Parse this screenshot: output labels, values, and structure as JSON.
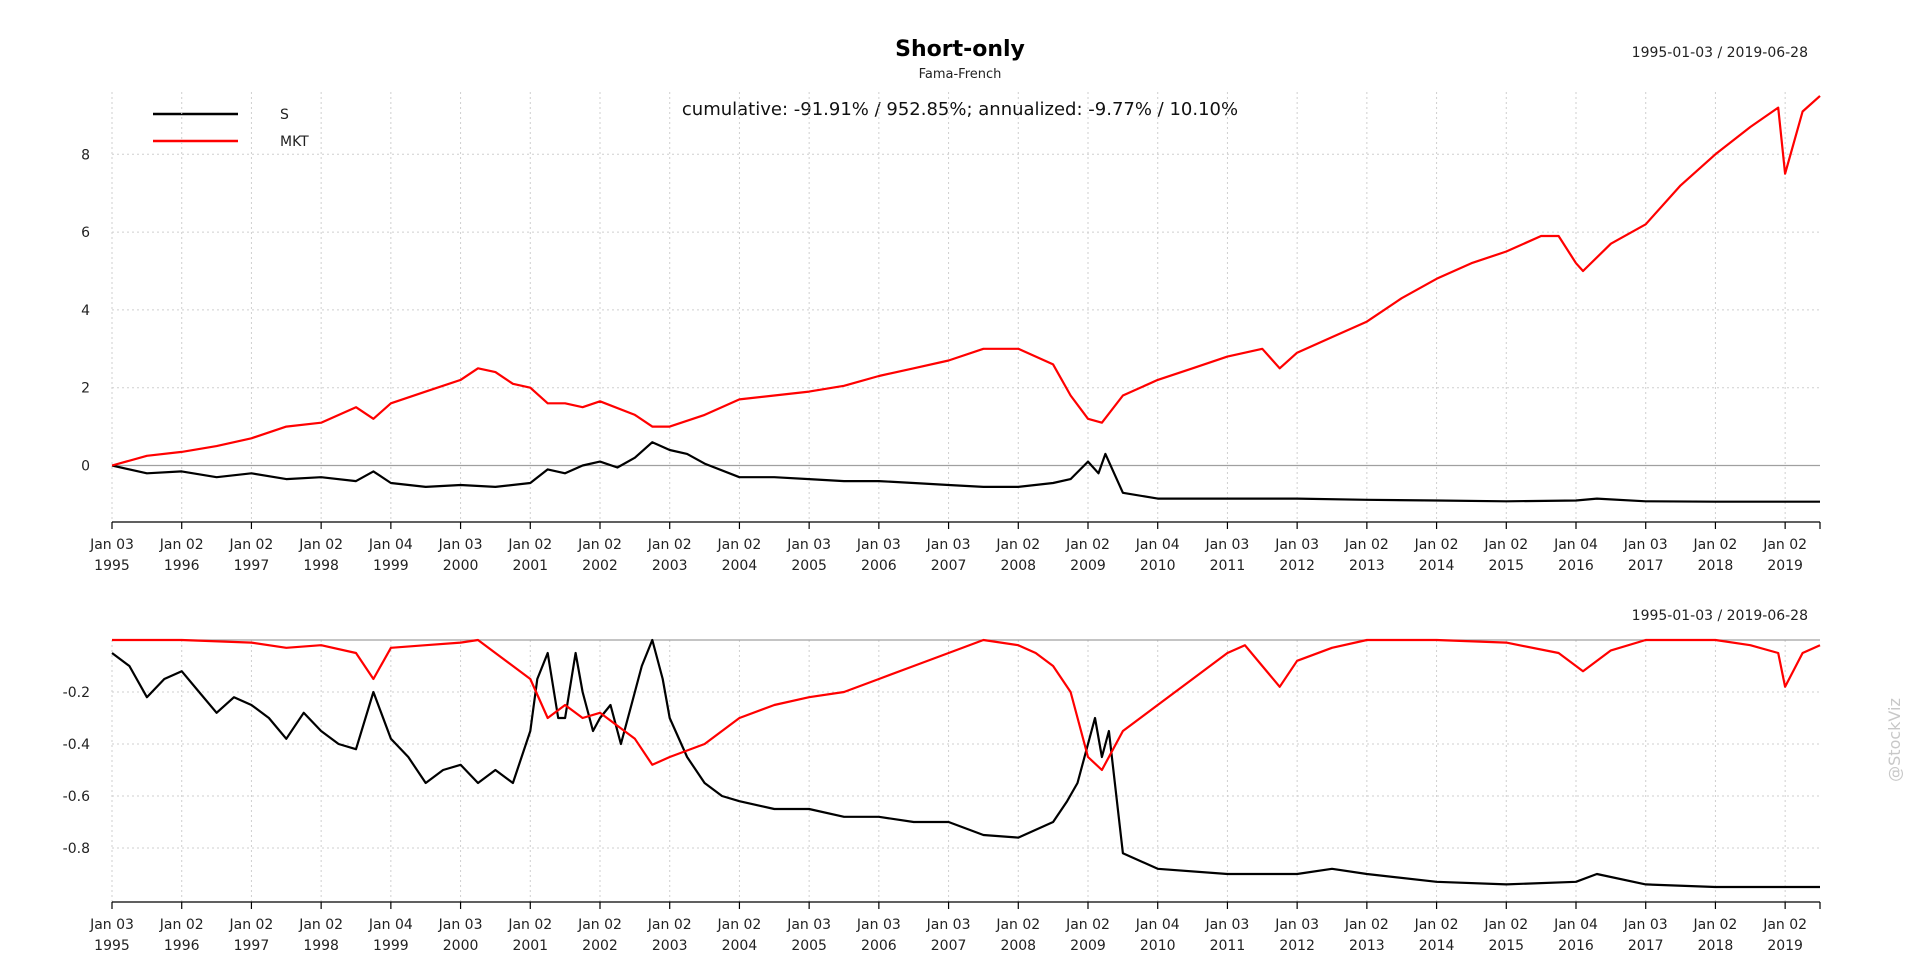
{
  "chart_data": [
    {
      "type": "line",
      "title": "Short-only",
      "subtitle": "Fama-French",
      "date_range": "1995-01-03 / 2019-06-28",
      "annotation": "cumulative: -91.91% / 952.85%; annualized: -9.77% / 10.10%",
      "legend_position": "top-left",
      "grid": true,
      "xlim": [
        1995.0,
        2019.5
      ],
      "ylim": [
        -1.4,
        9.6
      ],
      "yticks": [
        0,
        2,
        4,
        6,
        8
      ],
      "ytick_labels": [
        "0",
        "2",
        "4",
        "6",
        "8"
      ],
      "series": [
        {
          "name": "S",
          "color": "#000000",
          "x": [
            1995.0,
            1995.5,
            1996.0,
            1996.5,
            1997.0,
            1997.5,
            1998.0,
            1998.5,
            1998.75,
            1999.0,
            1999.5,
            2000.0,
            2000.5,
            2001.0,
            2001.25,
            2001.5,
            2001.75,
            2002.0,
            2002.25,
            2002.5,
            2002.75,
            2003.0,
            2003.25,
            2003.5,
            2004.0,
            2004.5,
            2005.0,
            2005.5,
            2006.0,
            2006.5,
            2007.0,
            2007.5,
            2008.0,
            2008.5,
            2008.75,
            2009.0,
            2009.15,
            2009.25,
            2009.5,
            2010.0,
            2011.0,
            2012.0,
            2013.0,
            2014.0,
            2015.0,
            2016.0,
            2016.3,
            2017.0,
            2018.0,
            2019.0,
            2019.5
          ],
          "values": [
            0.0,
            -0.2,
            -0.15,
            -0.3,
            -0.2,
            -0.35,
            -0.3,
            -0.4,
            -0.15,
            -0.45,
            -0.55,
            -0.5,
            -0.55,
            -0.45,
            -0.1,
            -0.2,
            0.0,
            0.1,
            -0.05,
            0.2,
            0.6,
            0.4,
            0.3,
            0.05,
            -0.3,
            -0.3,
            -0.35,
            -0.4,
            -0.4,
            -0.45,
            -0.5,
            -0.55,
            -0.55,
            -0.45,
            -0.35,
            0.1,
            -0.2,
            0.3,
            -0.7,
            -0.85,
            -0.85,
            -0.85,
            -0.88,
            -0.9,
            -0.92,
            -0.9,
            -0.85,
            -0.92,
            -0.93,
            -0.93,
            -0.93
          ]
        },
        {
          "name": "MKT",
          "color": "#ff0000",
          "x": [
            1995.0,
            1995.5,
            1996.0,
            1996.5,
            1997.0,
            1997.5,
            1998.0,
            1998.5,
            1998.75,
            1999.0,
            1999.5,
            2000.0,
            2000.25,
            2000.5,
            2000.75,
            2001.0,
            2001.25,
            2001.5,
            2001.75,
            2002.0,
            2002.5,
            2002.75,
            2003.0,
            2003.5,
            2004.0,
            2004.5,
            2005.0,
            2005.5,
            2006.0,
            2006.5,
            2007.0,
            2007.5,
            2008.0,
            2008.5,
            2008.75,
            2009.0,
            2009.2,
            2009.5,
            2010.0,
            2010.5,
            2011.0,
            2011.5,
            2011.75,
            2012.0,
            2012.5,
            2013.0,
            2013.5,
            2014.0,
            2014.5,
            2015.0,
            2015.5,
            2015.75,
            2016.0,
            2016.1,
            2016.5,
            2017.0,
            2017.5,
            2018.0,
            2018.5,
            2018.9,
            2019.0,
            2019.25,
            2019.5
          ],
          "values": [
            0.0,
            0.25,
            0.35,
            0.5,
            0.7,
            1.0,
            1.1,
            1.5,
            1.2,
            1.6,
            1.9,
            2.2,
            2.5,
            2.4,
            2.1,
            2.0,
            1.6,
            1.6,
            1.5,
            1.65,
            1.3,
            1.0,
            1.0,
            1.3,
            1.7,
            1.8,
            1.9,
            2.05,
            2.3,
            2.5,
            2.7,
            3.0,
            3.0,
            2.6,
            1.8,
            1.2,
            1.1,
            1.8,
            2.2,
            2.5,
            2.8,
            3.0,
            2.5,
            2.9,
            3.3,
            3.7,
            4.3,
            4.8,
            5.2,
            5.5,
            5.9,
            5.9,
            5.2,
            5.0,
            5.7,
            6.2,
            7.2,
            8.0,
            8.7,
            9.2,
            7.5,
            9.1,
            9.5
          ]
        }
      ]
    },
    {
      "type": "line",
      "title": "",
      "date_range": "1995-01-03 / 2019-06-28",
      "grid": true,
      "xlim": [
        1995.0,
        2019.5
      ],
      "ylim": [
        -1.0,
        0.0
      ],
      "yticks": [
        -0.2,
        -0.4,
        -0.6,
        -0.8
      ],
      "ytick_labels": [
        "-0.2",
        "-0.4",
        "-0.6",
        "-0.8"
      ],
      "series": [
        {
          "name": "S",
          "color": "#000000",
          "x": [
            1995.0,
            1995.25,
            1995.5,
            1995.75,
            1996.0,
            1996.25,
            1996.5,
            1996.75,
            1997.0,
            1997.25,
            1997.5,
            1997.75,
            1998.0,
            1998.25,
            1998.5,
            1998.75,
            1999.0,
            1999.25,
            1999.5,
            1999.75,
            2000.0,
            2000.25,
            2000.5,
            2000.75,
            2001.0,
            2001.1,
            2001.25,
            2001.4,
            2001.5,
            2001.65,
            2001.75,
            2001.9,
            2002.0,
            2002.15,
            2002.3,
            2002.45,
            2002.6,
            2002.75,
            2002.9,
            2003.0,
            2003.25,
            2003.5,
            2003.75,
            2004.0,
            2004.5,
            2005.0,
            2005.5,
            2006.0,
            2006.5,
            2007.0,
            2007.5,
            2008.0,
            2008.5,
            2008.7,
            2008.85,
            2009.0,
            2009.1,
            2009.2,
            2009.3,
            2009.5,
            2010.0,
            2011.0,
            2012.0,
            2012.5,
            2013.0,
            2014.0,
            2015.0,
            2016.0,
            2016.3,
            2017.0,
            2018.0,
            2019.0,
            2019.5
          ],
          "values": [
            -0.05,
            -0.1,
            -0.22,
            -0.15,
            -0.12,
            -0.2,
            -0.28,
            -0.22,
            -0.25,
            -0.3,
            -0.38,
            -0.28,
            -0.35,
            -0.4,
            -0.42,
            -0.2,
            -0.38,
            -0.45,
            -0.55,
            -0.5,
            -0.48,
            -0.55,
            -0.5,
            -0.55,
            -0.35,
            -0.15,
            -0.05,
            -0.3,
            -0.3,
            -0.05,
            -0.2,
            -0.35,
            -0.3,
            -0.25,
            -0.4,
            -0.25,
            -0.1,
            -0.0,
            -0.15,
            -0.3,
            -0.45,
            -0.55,
            -0.6,
            -0.62,
            -0.65,
            -0.65,
            -0.68,
            -0.68,
            -0.7,
            -0.7,
            -0.75,
            -0.76,
            -0.7,
            -0.62,
            -0.55,
            -0.4,
            -0.3,
            -0.45,
            -0.35,
            -0.82,
            -0.88,
            -0.9,
            -0.9,
            -0.88,
            -0.9,
            -0.93,
            -0.94,
            -0.93,
            -0.9,
            -0.94,
            -0.95,
            -0.95,
            -0.95
          ]
        },
        {
          "name": "MKT",
          "color": "#ff0000",
          "x": [
            1995.0,
            1996.0,
            1997.0,
            1997.5,
            1998.0,
            1998.5,
            1998.75,
            1999.0,
            1999.5,
            2000.0,
            2000.25,
            2000.5,
            2000.75,
            2001.0,
            2001.25,
            2001.5,
            2001.75,
            2002.0,
            2002.25,
            2002.5,
            2002.75,
            2003.0,
            2003.5,
            2004.0,
            2004.5,
            2005.0,
            2005.5,
            2006.0,
            2006.5,
            2007.0,
            2007.5,
            2008.0,
            2008.25,
            2008.5,
            2008.75,
            2009.0,
            2009.2,
            2009.5,
            2010.0,
            2010.5,
            2011.0,
            2011.25,
            2011.5,
            2011.75,
            2012.0,
            2012.5,
            2013.0,
            2014.0,
            2015.0,
            2015.75,
            2016.0,
            2016.1,
            2016.5,
            2017.0,
            2018.0,
            2018.5,
            2018.9,
            2019.0,
            2019.25,
            2019.5
          ],
          "values": [
            0.0,
            0.0,
            -0.01,
            -0.03,
            -0.02,
            -0.05,
            -0.15,
            -0.03,
            -0.02,
            -0.01,
            -0.0,
            -0.05,
            -0.1,
            -0.15,
            -0.3,
            -0.25,
            -0.3,
            -0.28,
            -0.33,
            -0.38,
            -0.48,
            -0.45,
            -0.4,
            -0.3,
            -0.25,
            -0.22,
            -0.2,
            -0.15,
            -0.1,
            -0.05,
            0.0,
            -0.02,
            -0.05,
            -0.1,
            -0.2,
            -0.45,
            -0.5,
            -0.35,
            -0.25,
            -0.15,
            -0.05,
            -0.02,
            -0.1,
            -0.18,
            -0.08,
            -0.03,
            0.0,
            0.0,
            -0.01,
            -0.05,
            -0.1,
            -0.12,
            -0.04,
            0.0,
            0.0,
            -0.02,
            -0.05,
            -0.18,
            -0.05,
            -0.02
          ]
        }
      ]
    }
  ],
  "x_axis": {
    "ticks": [
      1995,
      1996,
      1997,
      1998,
      1999,
      2000,
      2001,
      2002,
      2003,
      2004,
      2005,
      2006,
      2007,
      2008,
      2009,
      2010,
      2011,
      2012,
      2013,
      2014,
      2015,
      2016,
      2017,
      2018,
      2019
    ],
    "day_labels": [
      "Jan 03",
      "Jan 02",
      "Jan 02",
      "Jan 02",
      "Jan 04",
      "Jan 03",
      "Jan 02",
      "Jan 02",
      "Jan 02",
      "Jan 02",
      "Jan 03",
      "Jan 03",
      "Jan 03",
      "Jan 02",
      "Jan 02",
      "Jan 04",
      "Jan 03",
      "Jan 03",
      "Jan 02",
      "Jan 02",
      "Jan 02",
      "Jan 04",
      "Jan 03",
      "Jan 02",
      "Jan 02"
    ],
    "year_labels": [
      "1995",
      "1996",
      "1997",
      "1998",
      "1999",
      "2000",
      "2001",
      "2002",
      "2003",
      "2004",
      "2005",
      "2006",
      "2007",
      "2008",
      "2009",
      "2010",
      "2011",
      "2012",
      "2013",
      "2014",
      "2015",
      "2016",
      "2017",
      "2018",
      "2019"
    ]
  },
  "watermark": "@StockViz"
}
